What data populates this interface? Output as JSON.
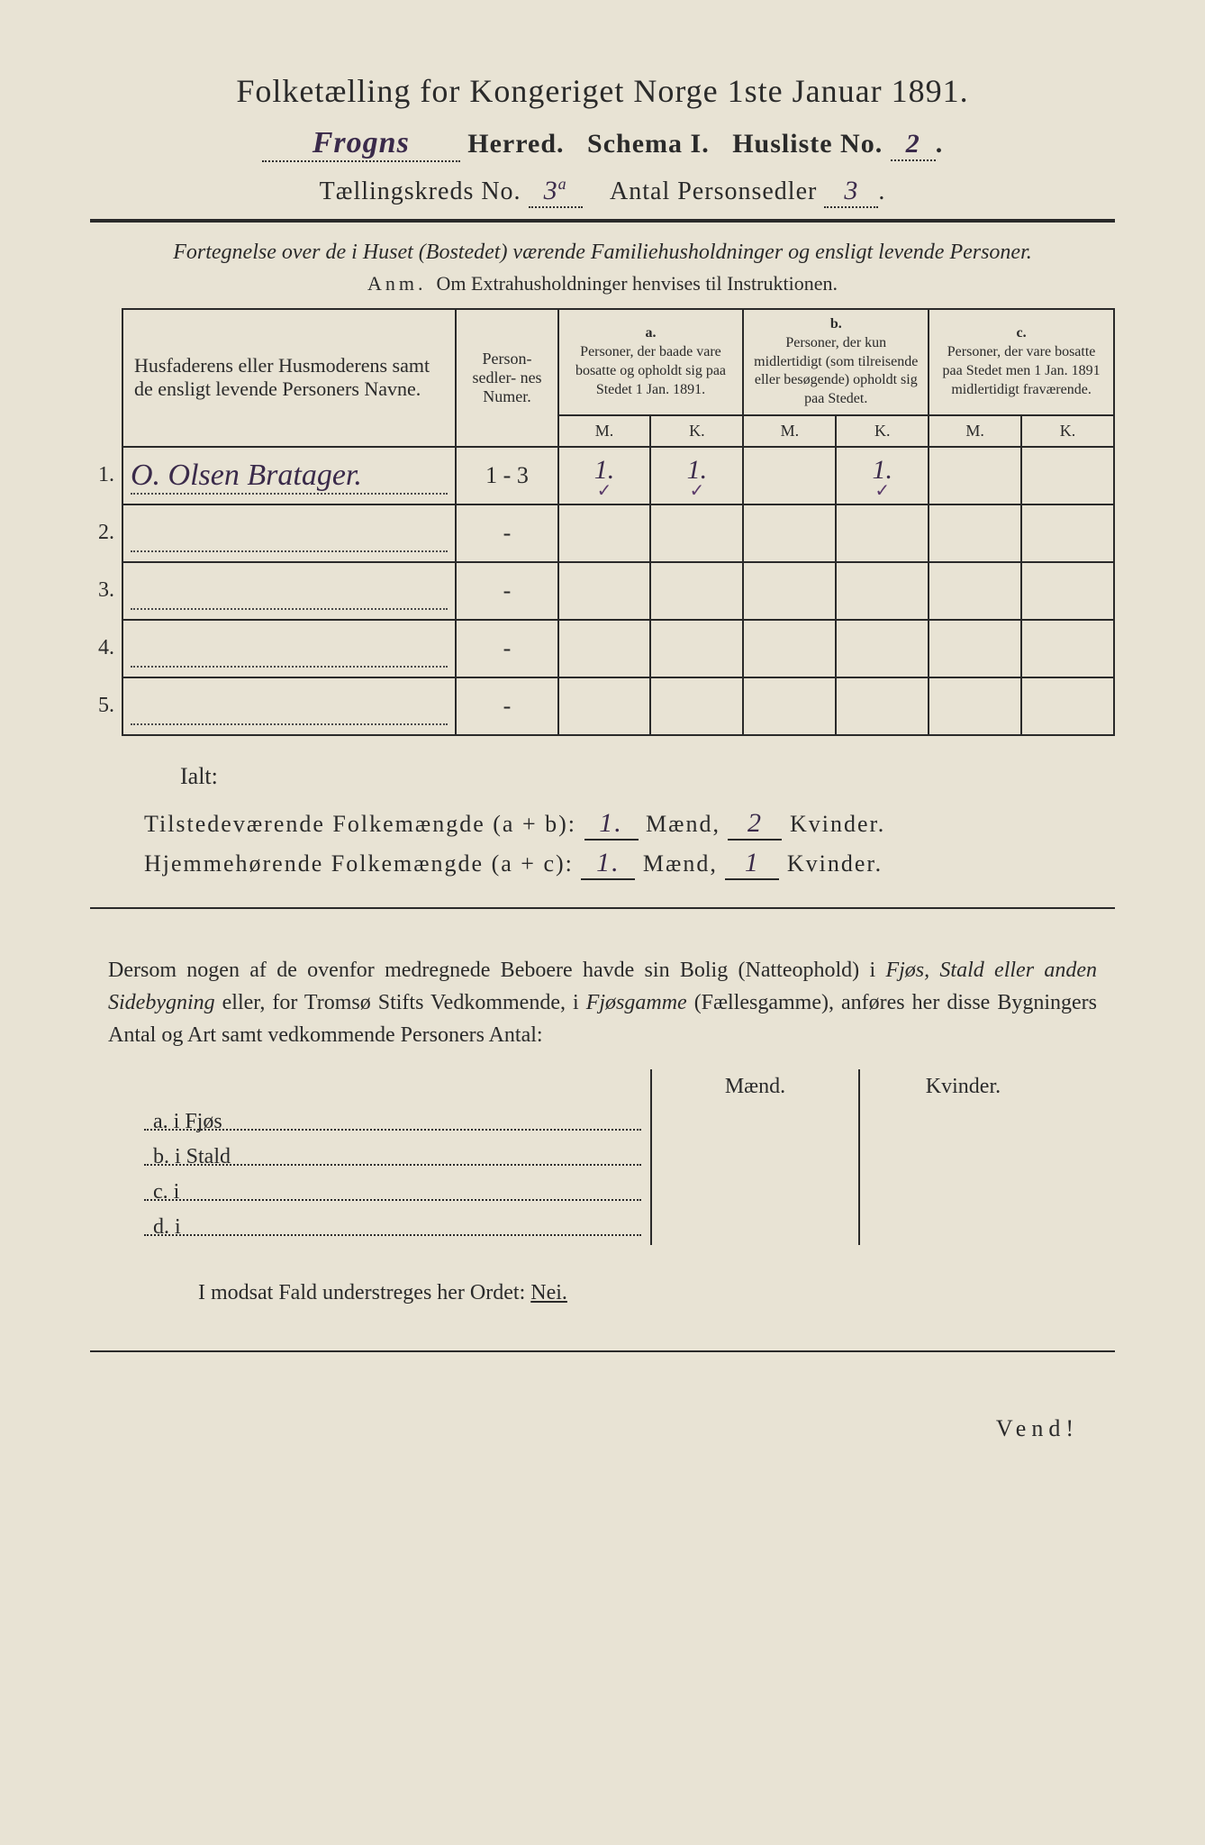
{
  "title": "Folketælling for Kongeriget Norge 1ste Januar 1891.",
  "herred_value": "Frogns",
  "herred_label": "Herred.",
  "schema_label": "Schema I.",
  "husliste_label": "Husliste No.",
  "husliste_value": "2",
  "kreds_label": "Tællingskreds No.",
  "kreds_value": "3",
  "kreds_suffix": "a",
  "antal_label": "Antal Personsedler",
  "antal_value": "3",
  "subhead": "Fortegnelse over de i Huset (Bostedet) værende Familiehusholdninger og ensligt levende Personer.",
  "anm_label": "Anm.",
  "anm_text": "Om Extrahusholdninger henvises til Instruktionen.",
  "colhead_name": "Husfaderens eller Husmoderens samt de ensligt levende Personers Navne.",
  "colhead_num": "Person-\nsedler-\nnes\nNumer.",
  "colhead_a_tag": "a.",
  "colhead_a": "Personer, der baade vare bosatte og opholdt sig paa Stedet 1 Jan. 1891.",
  "colhead_b_tag": "b.",
  "colhead_b": "Personer, der kun midlertidigt (som tilreisende eller besøgende) opholdt sig paa Stedet.",
  "colhead_c_tag": "c.",
  "colhead_c": "Personer, der vare bosatte paa Stedet men 1 Jan. 1891 midlertidigt fraværende.",
  "mk_m": "M.",
  "mk_k": "K.",
  "rows": [
    {
      "n": "1.",
      "name": "O. Olsen Bratager.",
      "num": "1 - 3",
      "a_m": "1.",
      "a_k": "1.",
      "b_m": "",
      "b_k": "1.",
      "c_m": "",
      "c_k": "",
      "tick_a_m": "✓",
      "tick_a_k": "✓",
      "tick_b_k": "✓"
    },
    {
      "n": "2.",
      "name": "",
      "num": "-",
      "a_m": "",
      "a_k": "",
      "b_m": "",
      "b_k": "",
      "c_m": "",
      "c_k": ""
    },
    {
      "n": "3.",
      "name": "",
      "num": "-",
      "a_m": "",
      "a_k": "",
      "b_m": "",
      "b_k": "",
      "c_m": "",
      "c_k": ""
    },
    {
      "n": "4.",
      "name": "",
      "num": "-",
      "a_m": "",
      "a_k": "",
      "b_m": "",
      "b_k": "",
      "c_m": "",
      "c_k": ""
    },
    {
      "n": "5.",
      "name": "",
      "num": "-",
      "a_m": "",
      "a_k": "",
      "b_m": "",
      "b_k": "",
      "c_m": "",
      "c_k": ""
    }
  ],
  "ialt": "Ialt:",
  "sum1_label": "Tilstedeværende Folkemængde (a + b):",
  "sum1_m": "1.",
  "sum1_k": "2",
  "sum2_label": "Hjemmehørende Folkemængde (a + c):",
  "sum2_m": "1.",
  "sum2_k": "1",
  "maend": "Mænd,",
  "kvinder": "Kvinder.",
  "para_1": "Dersom nogen af de ovenfor medregnede Beboere havde sin Bolig (Natteophold) i ",
  "para_it1": "Fjøs, Stald eller anden Sidebygning",
  "para_2": " eller, for Tromsø Stifts Vedkommende, i ",
  "para_it2": "Fjøsgamme",
  "para_3": " (Fællesgamme), anføres her disse Bygningers Antal og Art samt vedkommende Personers Antal:",
  "mk_maend": "Mænd.",
  "mk_kvinder": "Kvinder.",
  "opt_a": "a.  i      Fjøs",
  "opt_b": "b.  i      Stald",
  "opt_c": "c.  i",
  "opt_d": "d.  i",
  "nei_line_1": "I modsat Fald understreges her Ordet: ",
  "nei": "Nei.",
  "vend": "Vend!"
}
